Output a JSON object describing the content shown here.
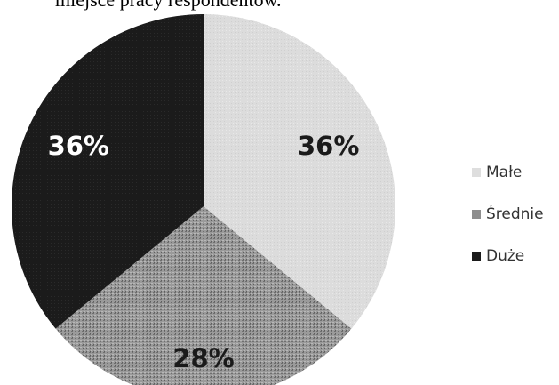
{
  "caption": "miejsce pracy respondentów.",
  "colors": {
    "small": "#dedede",
    "medium": "#8e8e8e",
    "large": "#1b1b1b"
  },
  "chart_data": {
    "type": "pie",
    "title": "",
    "legend_position": "right",
    "slices": [
      {
        "label": "Małe",
        "value": 36,
        "display": "36%",
        "color": "#dedede",
        "label_color": "#1a1a1a"
      },
      {
        "label": "Średnie",
        "value": 28,
        "display": "28%",
        "color": "#8e8e8e",
        "label_color": "#1a1a1a"
      },
      {
        "label": "Duże",
        "value": 36,
        "display": "36%",
        "color": "#1b1b1b",
        "label_color": "#ffffff"
      }
    ]
  },
  "legend": {
    "items": [
      {
        "label": "Małe"
      },
      {
        "label": "Średnie"
      },
      {
        "label": "Duże"
      }
    ]
  }
}
